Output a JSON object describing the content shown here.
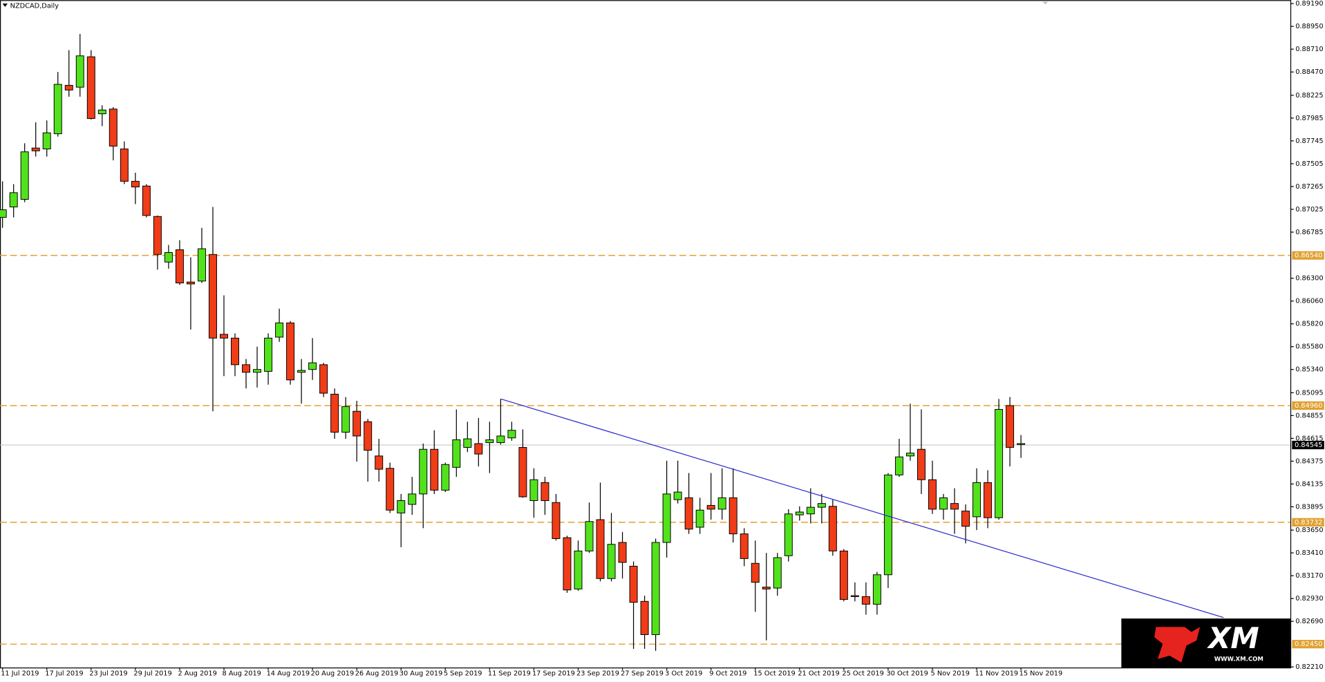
{
  "chart_data": {
    "type": "candlestick",
    "title": "NZDCAD,Daily",
    "categories": [
      "11 Jul 2019",
      null,
      null,
      null,
      "17 Jul 2019",
      null,
      null,
      null,
      "23 Jul 2019",
      null,
      null,
      null,
      "29 Jul 2019",
      null,
      null,
      null,
      "2 Aug 2019",
      null,
      null,
      null,
      "8 Aug 2019",
      null,
      null,
      null,
      "14 Aug 2019",
      null,
      null,
      null,
      "20 Aug 2019",
      null,
      null,
      null,
      "26 Aug 2019",
      null,
      null,
      null,
      "30 Aug 2019",
      null,
      null,
      null,
      "5 Sep 2019",
      null,
      null,
      null,
      "11 Sep 2019",
      null,
      null,
      null,
      "17 Sep 2019",
      null,
      null,
      null,
      "23 Sep 2019",
      null,
      null,
      null,
      "27 Sep 2019",
      null,
      null,
      null,
      "3 Oct 2019",
      null,
      null,
      null,
      "9 Oct 2019",
      null,
      null,
      null,
      "15 Oct 2019",
      null,
      null,
      null,
      "21 Oct 2019",
      null,
      null,
      null,
      "25 Oct 2019",
      null,
      null,
      null,
      "30 Oct 2019",
      null,
      null,
      null,
      "5 Nov 2019",
      null,
      null,
      null,
      "11 Nov 2019",
      null,
      null,
      null,
      "15 Nov 2019"
    ],
    "open": [
      0.8694,
      0.8705,
      0.8713,
      0.8767,
      0.8766,
      0.8782,
      0.8833,
      0.8831,
      0.8863,
      0.8803,
      0.8808,
      0.8766,
      0.8732,
      0.8727,
      0.8695,
      0.8647,
      0.866,
      0.8626,
      0.8627,
      0.8655,
      0.8571,
      0.8567,
      0.8539,
      0.8531,
      0.8532,
      0.8568,
      0.8583,
      0.8531,
      0.8534,
      0.8539,
      0.8508,
      0.8468,
      0.849,
      0.8479,
      0.8443,
      0.843,
      0.8383,
      0.8392,
      0.8403,
      0.845,
      0.8407,
      0.8431,
      0.8452,
      0.8456,
      0.8457,
      0.8457,
      0.8462,
      0.8452,
      0.8396,
      0.8415,
      0.8394,
      0.8357,
      0.8303,
      0.8343,
      0.8376,
      0.8314,
      0.8352,
      0.8327,
      0.829,
      0.8255,
      0.8352,
      0.8397,
      0.8399,
      0.8368,
      0.8391,
      0.8387,
      0.8399,
      0.8361,
      0.833,
      0.8305,
      0.8304,
      0.8338,
      0.8381,
      0.8382,
      0.8389,
      0.839,
      0.8343,
      0.8296,
      0.8295,
      0.8287,
      0.8318,
      0.8423,
      0.8443,
      0.845,
      0.8418,
      0.8387,
      0.8393,
      0.8385,
      0.8379,
      0.8415,
      0.8378,
      0.8496,
      0.8455
    ],
    "high": [
      0.8732,
      0.8729,
      0.8772,
      0.8794,
      0.8796,
      0.8847,
      0.887,
      0.8887,
      0.887,
      0.8812,
      0.881,
      0.8774,
      0.8741,
      0.8729,
      0.8696,
      0.8665,
      0.867,
      0.8652,
      0.8683,
      0.8705,
      0.8612,
      0.8572,
      0.8545,
      0.8558,
      0.8572,
      0.8598,
      0.8585,
      0.8545,
      0.8567,
      0.8541,
      0.8514,
      0.8505,
      0.8501,
      0.8482,
      0.8461,
      0.8436,
      0.8403,
      0.8421,
      0.8456,
      0.847,
      0.8436,
      0.8492,
      0.8479,
      0.8483,
      0.8479,
      0.8503,
      0.8479,
      0.8471,
      0.843,
      0.8421,
      0.8403,
      0.8359,
      0.8354,
      0.8394,
      0.8415,
      0.8383,
      0.8363,
      0.8332,
      0.8296,
      0.8356,
      0.8438,
      0.8438,
      0.8425,
      0.8399,
      0.8425,
      0.843,
      0.843,
      0.8367,
      0.8354,
      0.8341,
      0.8341,
      0.8387,
      0.839,
      0.8409,
      0.8403,
      0.8397,
      0.8345,
      0.831,
      0.831,
      0.8321,
      0.8425,
      0.8461,
      0.8498,
      0.8492,
      0.8438,
      0.8403,
      0.8409,
      0.8392,
      0.843,
      0.8428,
      0.8503,
      0.8505,
      0.8465
    ],
    "low": [
      0.8683,
      0.8694,
      0.871,
      0.8758,
      0.8758,
      0.8779,
      0.8821,
      0.8821,
      0.8797,
      0.879,
      0.8754,
      0.8729,
      0.8708,
      0.8694,
      0.8639,
      0.864,
      0.8623,
      0.8576,
      0.8625,
      0.849,
      0.8527,
      0.8527,
      0.8514,
      0.8515,
      0.8518,
      0.8563,
      0.8518,
      0.8498,
      0.8523,
      0.8505,
      0.8461,
      0.8461,
      0.8437,
      0.8416,
      0.8416,
      0.8383,
      0.8347,
      0.8381,
      0.8367,
      0.8403,
      0.8405,
      0.8421,
      0.8447,
      0.8432,
      0.8425,
      0.8455,
      0.8459,
      0.8399,
      0.8378,
      0.8381,
      0.8354,
      0.8299,
      0.8301,
      0.8341,
      0.8311,
      0.8311,
      0.8314,
      0.824,
      0.824,
      0.8238,
      0.8336,
      0.8393,
      0.8361,
      0.8361,
      0.8376,
      0.8376,
      0.8352,
      0.8327,
      0.8279,
      0.8249,
      0.8296,
      0.8332,
      0.8375,
      0.8372,
      0.8372,
      0.8338,
      0.829,
      0.829,
      0.8276,
      0.8276,
      0.8304,
      0.8421,
      0.8438,
      0.8403,
      0.8382,
      0.8376,
      0.8361,
      0.8351,
      0.8365,
      0.8367,
      0.8376,
      0.8432,
      0.8441
    ],
    "close": [
      0.8702,
      0.872,
      0.8763,
      0.8764,
      0.8783,
      0.8834,
      0.8828,
      0.8864,
      0.8798,
      0.8807,
      0.8769,
      0.8732,
      0.8726,
      0.8696,
      0.8655,
      0.8657,
      0.8625,
      0.8624,
      0.8661,
      0.8567,
      0.8567,
      0.8539,
      0.8531,
      0.8534,
      0.8567,
      0.8583,
      0.8523,
      0.8533,
      0.8541,
      0.8509,
      0.8468,
      0.8495,
      0.8464,
      0.8449,
      0.8429,
      0.8386,
      0.8396,
      0.8403,
      0.845,
      0.8407,
      0.8434,
      0.846,
      0.8461,
      0.8445,
      0.846,
      0.8464,
      0.847,
      0.84,
      0.8418,
      0.8396,
      0.8356,
      0.8302,
      0.8343,
      0.8374,
      0.8314,
      0.835,
      0.8331,
      0.8289,
      0.8255,
      0.8352,
      0.8403,
      0.8405,
      0.8366,
      0.8386,
      0.8387,
      0.8399,
      0.8361,
      0.8335,
      0.831,
      0.8303,
      0.8336,
      0.8382,
      0.8384,
      0.8389,
      0.8393,
      0.8343,
      0.8292,
      0.8295,
      0.8287,
      0.8318,
      0.8423,
      0.8442,
      0.8446,
      0.8418,
      0.8387,
      0.8399,
      0.8387,
      0.8369,
      0.8415,
      0.8378,
      0.8492,
      0.8452,
      0.8456
    ],
    "up_color": "#52e21c",
    "down_color": "#f03c17",
    "ylim": [
      0.82204,
      0.89226
    ],
    "yticks": [
      {
        "value": 0.8919,
        "label": "0.89190"
      },
      {
        "value": 0.8895,
        "label": "0.88950"
      },
      {
        "value": 0.8871,
        "label": "0.88710"
      },
      {
        "value": 0.8847,
        "label": "0.88470"
      },
      {
        "value": 0.88225,
        "label": "0.88225"
      },
      {
        "value": 0.87985,
        "label": "0.87985"
      },
      {
        "value": 0.87745,
        "label": "0.87745"
      },
      {
        "value": 0.87505,
        "label": "0.87505"
      },
      {
        "value": 0.87265,
        "label": "0.87265"
      },
      {
        "value": 0.87025,
        "label": "0.87025"
      },
      {
        "value": 0.86785,
        "label": "0.86785"
      },
      {
        "value": 0.863,
        "label": "0.86300"
      },
      {
        "value": 0.8606,
        "label": "0.86060"
      },
      {
        "value": 0.8582,
        "label": "0.85820"
      },
      {
        "value": 0.8558,
        "label": "0.85580"
      },
      {
        "value": 0.8534,
        "label": "0.85340"
      },
      {
        "value": 0.85095,
        "label": "0.85095"
      },
      {
        "value": 0.84855,
        "label": "0.84855"
      },
      {
        "value": 0.84615,
        "label": "0.84615"
      },
      {
        "value": 0.84375,
        "label": "0.84375"
      },
      {
        "value": 0.84135,
        "label": "0.84135"
      },
      {
        "value": 0.83895,
        "label": "0.83895"
      },
      {
        "value": 0.8365,
        "label": "0.83650"
      },
      {
        "value": 0.8341,
        "label": "0.83410"
      },
      {
        "value": 0.8317,
        "label": "0.83170"
      },
      {
        "value": 0.8293,
        "label": "0.82930"
      },
      {
        "value": 0.8269,
        "label": "0.82690"
      },
      {
        "value": 0.8221,
        "label": "0.82210"
      }
    ],
    "levels": [
      {
        "value": 0.8654,
        "label": "0.86540"
      },
      {
        "value": 0.8496,
        "label": "0.84960"
      },
      {
        "value": 0.83732,
        "label": "0.83732"
      },
      {
        "value": 0.8245,
        "label": "0.82450"
      }
    ],
    "level_color": "#e0a030",
    "current_price": {
      "value": 0.84545,
      "label": "0.84545"
    },
    "trendline": {
      "color": "#2828d0",
      "start": {
        "index": 45,
        "price": 0.8503
      },
      "end": {
        "index": 110.3,
        "price": 0.8273
      }
    },
    "logo": {
      "text": "XM",
      "url": "WWW.XM.COM"
    }
  }
}
